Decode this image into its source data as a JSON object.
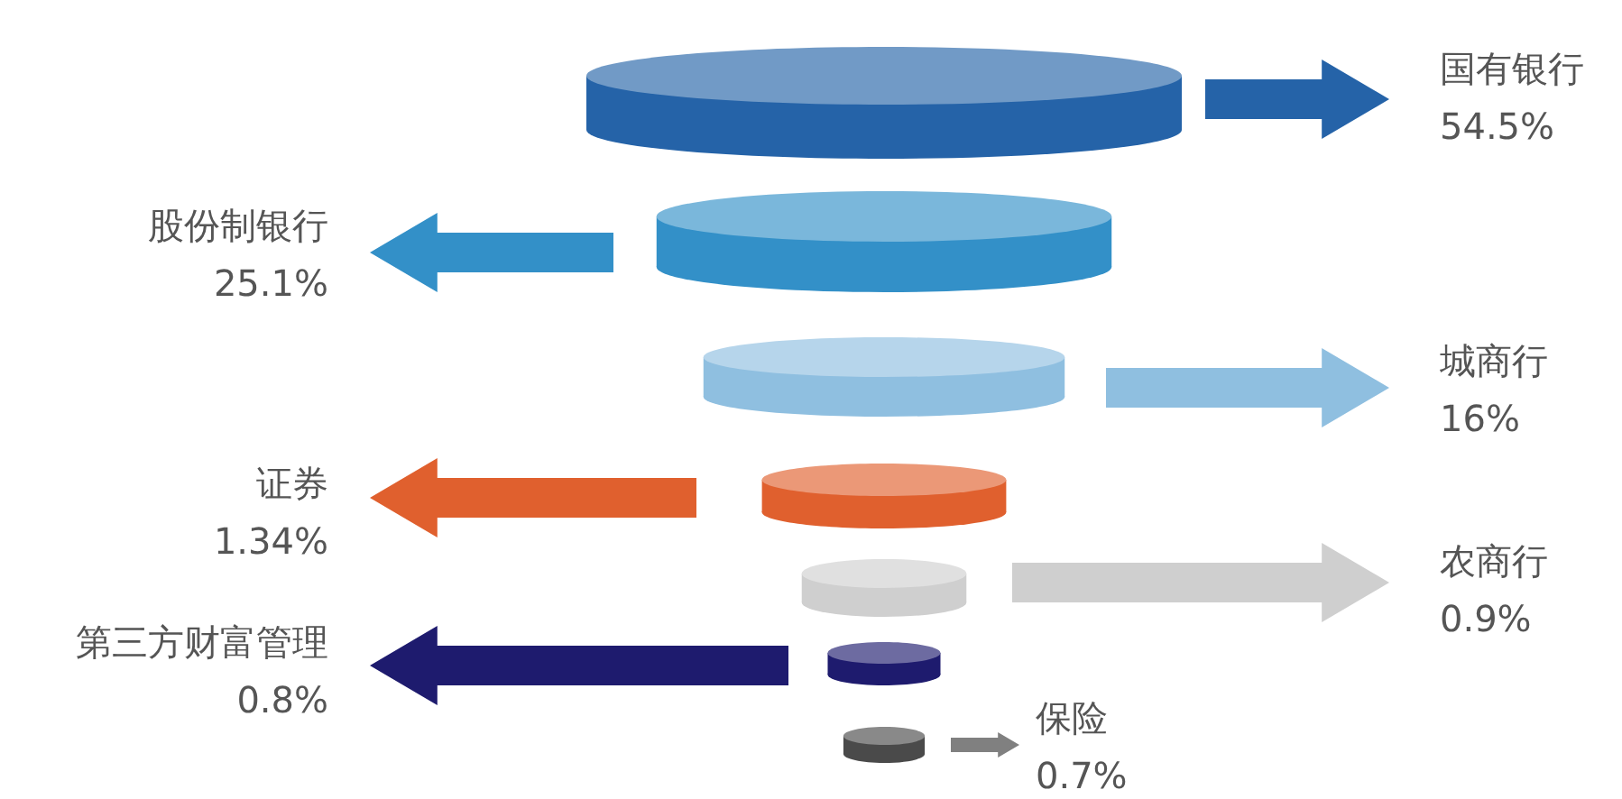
{
  "chart_data": {
    "type": "other",
    "categories": [
      "国有银行",
      "股份制银行",
      "城商行",
      "证券",
      "农商行",
      "第三方财富管理",
      "保险"
    ],
    "values": [
      54.5,
      25.1,
      16,
      1.34,
      0.9,
      0.8,
      0.7
    ],
    "value_labels": [
      "54.5%",
      "25.1%",
      "16%",
      "1.34%",
      "0.9%",
      "0.8%",
      "0.7%"
    ],
    "colors": [
      "#2563a8",
      "#3390c8",
      "#8fbfe0",
      "#e0602e",
      "#cfcfcf",
      "#1e1b6e",
      "#4a4a4a"
    ],
    "data_labels": true
  }
}
